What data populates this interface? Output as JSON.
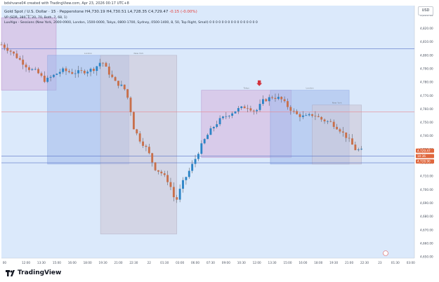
{
  "header": {
    "published_line": "bdshvane04 created with TradingView.com, Apr 23, 2026 00:17 UTC+8",
    "symbol": "Gold Spot / U.S. Dollar · 15 · Pepperstone",
    "ohlc": "H4,730.19  H4,730.51  L4,728.35  C4,729.47",
    "change": "-0.15 (-0.00%)",
    "indicator_vp": "VP (SDR, 380, 1, 20, 70, Both, 7, 68, 1)",
    "indicator_sessions": "LuxAlgo - Sessions (New York, 2000-0900, London, 1500-0000, Tokyo, 0800-1700, Sydney, 0500-1400, 8, 50, Top Right, Small)  0  0  0  0  0  0  0  0  0  0  0  0  0  0  0  0"
  },
  "currency_button": "USD",
  "branding": {
    "name": "TradingView"
  },
  "colors": {
    "background": "#dbe9fb",
    "up_candle": "#2b84c6",
    "down_candle": "#c86f4a",
    "wick": "#4a4f57",
    "red_line": "#e88a93",
    "blue_line": "#5b74c7",
    "arrow": "#d2333d",
    "price_badge": "#e0673d"
  },
  "chart_data": {
    "type": "candlestick",
    "title": "Gold Spot / U.S. Dollar",
    "ylim": [
      4649,
      4837
    ],
    "y_ticks": [
      4650,
      4660,
      4670,
      4680,
      4690,
      4700,
      4710,
      4720,
      4730,
      4740,
      4750,
      4760,
      4770,
      4780,
      4790,
      4800,
      4810,
      4820,
      4830
    ],
    "y_tick_labels": [
      "4,650.00",
      "4,660.00",
      "4,670.00",
      "4,680.00",
      "4,690.00",
      "4,700.00",
      "4,710.00",
      "4,720.00",
      "4,730.00",
      "4,740.00",
      "4,750.00",
      "4,760.00",
      "4,770.00",
      "4,780.00",
      "4,790.00",
      "4,800.00",
      "4,810.00",
      "4,820.00",
      "4,830.00"
    ],
    "time_range_hours": [
      -0.25,
      29.0
    ],
    "x_ticks": [
      {
        "t": 0.0,
        "label": "00"
      },
      {
        "t": 1.75,
        "label": "12:00"
      },
      {
        "t": 3.0,
        "label": "13:30"
      },
      {
        "t": 4.25,
        "label": "15:00"
      },
      {
        "t": 5.5,
        "label": "16:00"
      },
      {
        "t": 6.75,
        "label": "18:00"
      },
      {
        "t": 8.0,
        "label": "19:30"
      },
      {
        "t": 9.25,
        "label": "21:00"
      },
      {
        "t": 10.5,
        "label": "22:30"
      },
      {
        "t": 11.75,
        "label": "22"
      },
      {
        "t": 13.0,
        "label": "01:30"
      },
      {
        "t": 14.25,
        "label": "03:00"
      },
      {
        "t": 15.5,
        "label": "06:00"
      },
      {
        "t": 16.75,
        "label": "07:30"
      },
      {
        "t": 18.0,
        "label": "09:00"
      },
      {
        "t": 19.25,
        "label": "10:30"
      },
      {
        "t": 20.5,
        "label": "12:00"
      },
      {
        "t": 21.75,
        "label": "13:30"
      },
      {
        "t": 23.0,
        "label": "15:00"
      },
      {
        "t": 24.25,
        "label": "16:00"
      },
      {
        "t": 25.5,
        "label": "18:00"
      },
      {
        "t": 26.75,
        "label": "19:30"
      },
      {
        "t": 28.0,
        "label": "21:00"
      },
      {
        "t": 29.25,
        "label": "22:30"
      },
      {
        "t": 30.5,
        "label": "23"
      },
      {
        "t": 31.75,
        "label": "01:30"
      },
      {
        "t": 33.0,
        "label": "03:00"
      }
    ],
    "sessions": [
      {
        "label": "Tokyo",
        "t_start": -0.25,
        "t_end": 4.2,
        "high": 4828,
        "low": 4774,
        "fill": "rgba(214,178,220,0.55)",
        "stroke": "rgba(170,120,190,0.6)"
      },
      {
        "label": "London",
        "t_start": 3.5,
        "t_end": 10.1,
        "high": 4800,
        "low": 4719,
        "fill": "rgba(160,185,235,0.55)",
        "stroke": "rgba(120,150,220,0.6)"
      },
      {
        "label": "New York",
        "t_start": 7.8,
        "t_end": 14.0,
        "high": 4800,
        "low": 4667,
        "fill": "rgba(205,200,215,0.6)",
        "stroke": "rgba(165,160,180,0.6)"
      },
      {
        "label": "Tokyo",
        "t_start": 16.0,
        "t_end": 23.3,
        "high": 4774,
        "low": 4724,
        "fill": "rgba(214,178,220,0.55)",
        "stroke": "rgba(170,120,190,0.6)"
      },
      {
        "label": "London",
        "t_start": 21.6,
        "t_end": 28.0,
        "high": 4774,
        "low": 4719,
        "fill": "rgba(160,185,235,0.55)",
        "stroke": "rgba(120,150,220,0.6)"
      },
      {
        "label": "New York",
        "t_start": 25.0,
        "t_end": 29.0,
        "high": 4763,
        "low": 4719,
        "fill": "rgba(205,200,215,0.6)",
        "stroke": "rgba(165,160,180,0.6)"
      }
    ],
    "horizontal_lines": [
      {
        "y": 4805,
        "color": "#5b74c7"
      },
      {
        "y": 4758,
        "color": "#e88a93"
      },
      {
        "y": 4725,
        "color": "#5b74c7"
      },
      {
        "y": 4720,
        "color": "#5b74c7"
      }
    ],
    "marker_arrow": {
      "t": 20.7,
      "y": 4774
    },
    "price_badges": [
      {
        "label": "4,729.47",
        "y": 4729,
        "bg": "#e0673d"
      },
      {
        "label": "10:36",
        "y": 4725,
        "bg": "#e0673d"
      },
      {
        "label": "4,728.90",
        "y": 4721,
        "bg": "#e0673d"
      }
    ],
    "close_anchors": [
      [
        -0.25,
        4808
      ],
      [
        0.5,
        4803
      ],
      [
        1.2,
        4797
      ],
      [
        2.0,
        4790
      ],
      [
        2.6,
        4788
      ],
      [
        3.3,
        4781
      ],
      [
        4.0,
        4785
      ],
      [
        4.7,
        4789
      ],
      [
        5.5,
        4787
      ],
      [
        6.5,
        4788
      ],
      [
        7.3,
        4790
      ],
      [
        7.9,
        4796
      ],
      [
        8.4,
        4788
      ],
      [
        9.0,
        4780
      ],
      [
        9.7,
        4776
      ],
      [
        10.1,
        4766
      ],
      [
        10.5,
        4746
      ],
      [
        11.0,
        4737
      ],
      [
        11.6,
        4730
      ],
      [
        12.2,
        4716
      ],
      [
        12.8,
        4712
      ],
      [
        13.4,
        4705
      ],
      [
        13.9,
        4690
      ],
      [
        14.4,
        4704
      ],
      [
        14.9,
        4712
      ],
      [
        15.5,
        4723
      ],
      [
        16.1,
        4735
      ],
      [
        16.8,
        4745
      ],
      [
        17.5,
        4752
      ],
      [
        18.2,
        4756
      ],
      [
        19.0,
        4760
      ],
      [
        19.7,
        4762
      ],
      [
        20.4,
        4758
      ],
      [
        21.0,
        4766
      ],
      [
        21.7,
        4769
      ],
      [
        22.4,
        4768
      ],
      [
        23.0,
        4762
      ],
      [
        23.7,
        4756
      ],
      [
        24.4,
        4754
      ],
      [
        25.1,
        4756
      ],
      [
        25.8,
        4752
      ],
      [
        26.5,
        4750
      ],
      [
        27.2,
        4745
      ],
      [
        27.9,
        4738
      ],
      [
        28.5,
        4730
      ],
      [
        29.0,
        4729
      ]
    ]
  }
}
